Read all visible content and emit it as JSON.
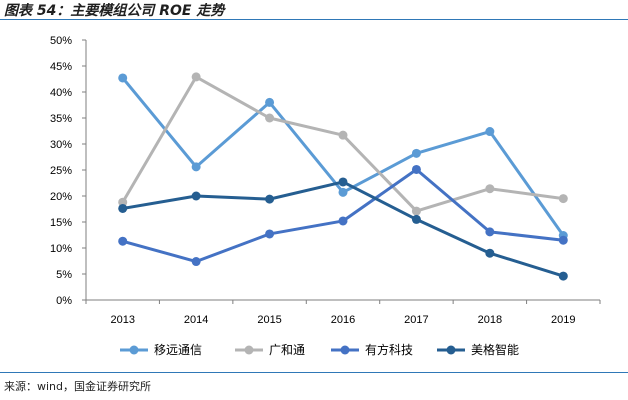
{
  "figure": {
    "title": "图表 54：主要模组公司 ROE 走势",
    "source": "来源：wind，国金证券研究所"
  },
  "chart_data": {
    "type": "line",
    "title": "",
    "xlabel": "",
    "ylabel": "",
    "categories": [
      "2013",
      "2014",
      "2015",
      "2016",
      "2017",
      "2018",
      "2019"
    ],
    "ylim": [
      0,
      50
    ],
    "yticks": [
      "0%",
      "5%",
      "10%",
      "15%",
      "20%",
      "25%",
      "30%",
      "35%",
      "40%",
      "45%",
      "50%"
    ],
    "grid": false,
    "legend_position": "bottom",
    "series": [
      {
        "name": "移远通信",
        "color": "#5b9bd5",
        "values": [
          42.7,
          25.6,
          38.0,
          20.7,
          28.2,
          32.4,
          12.4
        ]
      },
      {
        "name": "广和通",
        "color": "#b4b4b4",
        "values": [
          18.8,
          42.9,
          35.0,
          31.7,
          17.1,
          21.4,
          19.5
        ]
      },
      {
        "name": "有方科技",
        "color": "#4472c4",
        "values": [
          11.3,
          7.4,
          12.7,
          15.2,
          25.1,
          13.1,
          11.5
        ]
      },
      {
        "name": "美格智能",
        "color": "#255e91",
        "values": [
          17.6,
          20.0,
          19.4,
          22.7,
          15.5,
          9.0,
          4.6
        ]
      }
    ]
  }
}
